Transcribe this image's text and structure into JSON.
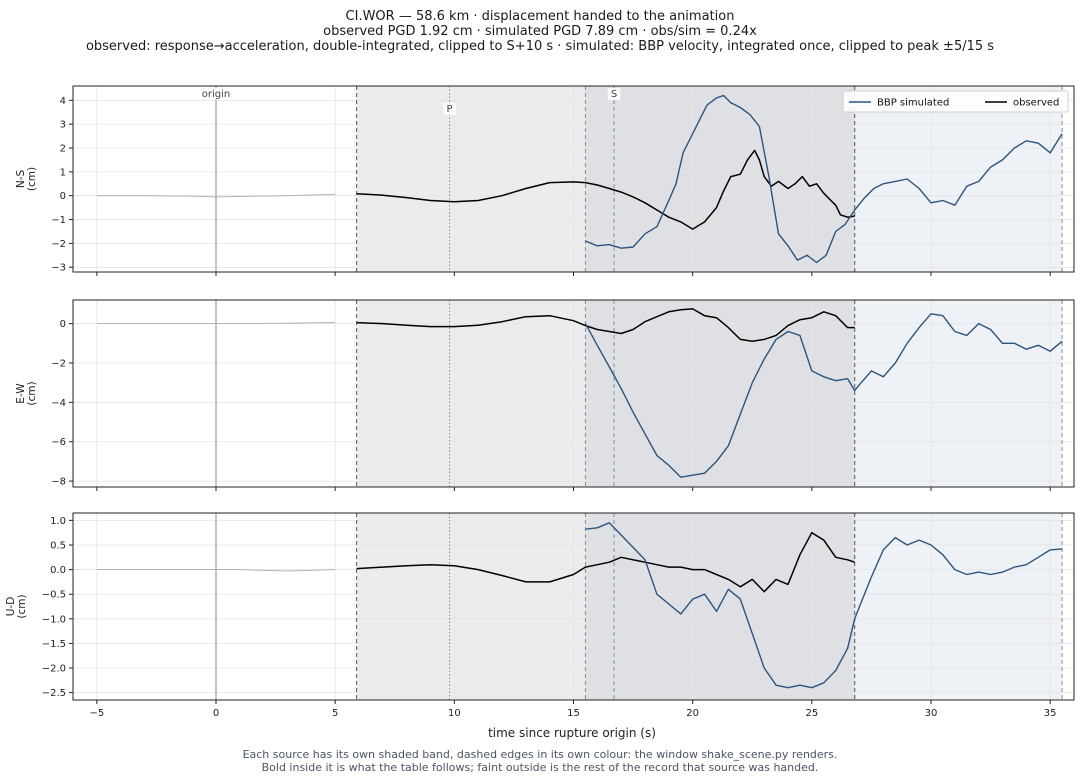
{
  "title": {
    "line1": "CI.WOR  —  58.6 km   ·   displacement handed to the animation",
    "line2": "observed PGD 1.92 cm   ·   simulated PGD 7.89 cm   ·   obs/sim = 0.24x",
    "line3": "observed: response→acceleration, double-integrated, clipped to S+10 s   ·   simulated: BBP velocity, integrated once, clipped to peak ±5/15 s"
  },
  "footnote": {
    "line1": "Each source has its own shaded band, dashed edges in its own colour: the window shake_scene.py renders.",
    "line2": "Bold inside it is what the table follows;   faint outside is the rest of the record that source was handed."
  },
  "colors": {
    "observed": "#000000",
    "simulated": "#2b557f",
    "faint": "#aaaaaa",
    "obs_band": "#ececec",
    "sim_band": "#eef1f5",
    "overlap_band": "#dfe0e4",
    "obs_edge": "#555555",
    "sim_edge": "#7d8fab",
    "origin_line": "#aaaaaa",
    "grid": "#e4e4e4"
  },
  "chart_data": {
    "type": "line",
    "xlabel": "time since rupture origin (s)",
    "xlim": [
      -6,
      36
    ],
    "xticks": [
      -5,
      0,
      5,
      10,
      15,
      20,
      25,
      30,
      35
    ],
    "grid": true,
    "legend": {
      "position": "top-right",
      "entries": [
        "BBP simulated",
        "observed"
      ]
    },
    "markers": [
      {
        "label": "origin",
        "t": 0
      },
      {
        "label": "P",
        "t": 9.8
      },
      {
        "label": "S",
        "t": 16.7
      }
    ],
    "windows": {
      "observed": [
        5.9,
        26.8
      ],
      "simulated": [
        15.5,
        35.5
      ]
    },
    "panels": [
      {
        "ylabel": "N-S\n(cm)",
        "ylim": [
          -3.2,
          4.6
        ],
        "yticks": [
          -3,
          -2,
          -1,
          0,
          1,
          2,
          3,
          4
        ],
        "series": [
          {
            "name": "observed",
            "x": [
              -5,
              -3,
              -1,
              0,
              1,
              3,
              5,
              5.9,
              7,
              8,
              9,
              10,
              11,
              12,
              13,
              14,
              15,
              15.5,
              16,
              16.5,
              17,
              17.5,
              18,
              18.5,
              19,
              19.5,
              20,
              20.5,
              21,
              21.3,
              21.6,
              22,
              22.3,
              22.6,
              22.8,
              23,
              23.3,
              23.6,
              24,
              24.3,
              24.6,
              24.9,
              25.2,
              25.5,
              25.8,
              26,
              26.2,
              26.5,
              26.8
            ],
            "y": [
              0,
              0,
              -0.02,
              -0.05,
              -0.03,
              0,
              0.06,
              0.08,
              0.02,
              -0.08,
              -0.2,
              -0.25,
              -0.2,
              0,
              0.3,
              0.55,
              0.58,
              0.55,
              0.45,
              0.3,
              0.15,
              -0.05,
              -0.3,
              -0.6,
              -0.9,
              -1.1,
              -1.4,
              -1.1,
              -0.5,
              0.2,
              0.8,
              0.9,
              1.5,
              1.9,
              1.5,
              0.8,
              0.4,
              0.6,
              0.3,
              0.5,
              0.8,
              0.4,
              0.5,
              0.1,
              -0.2,
              -0.4,
              -0.8,
              -0.9,
              -0.85
            ]
          },
          {
            "name": "BBP simulated",
            "x": [
              15.5,
              16,
              16.5,
              17,
              17.5,
              18,
              18.5,
              19,
              19.3,
              19.6,
              20,
              20.3,
              20.6,
              21,
              21.3,
              21.6,
              22,
              22.4,
              22.8,
              23.2,
              23.6,
              24,
              24.4,
              24.8,
              25.2,
              25.6,
              26,
              26.4,
              26.8,
              27.2,
              27.6,
              28,
              28.5,
              29,
              29.5,
              30,
              30.5,
              31,
              31.5,
              32,
              32.5,
              33,
              33.5,
              34,
              34.5,
              35,
              35.5
            ],
            "y": [
              -1.9,
              -2.1,
              -2.05,
              -2.2,
              -2.15,
              -1.6,
              -1.3,
              -0.2,
              0.5,
              1.8,
              2.6,
              3.2,
              3.8,
              4.1,
              4.2,
              3.9,
              3.7,
              3.4,
              2.9,
              0.8,
              -1.6,
              -2.1,
              -2.7,
              -2.5,
              -2.8,
              -2.5,
              -1.5,
              -1.2,
              -0.6,
              -0.1,
              0.3,
              0.5,
              0.6,
              0.7,
              0.3,
              -0.3,
              -0.2,
              -0.4,
              0.4,
              0.6,
              1.2,
              1.5,
              2,
              2.3,
              2.2,
              1.8,
              2.6
            ]
          }
        ]
      },
      {
        "ylabel": "E-W\n(cm)",
        "ylim": [
          -8.3,
          1.2
        ],
        "yticks": [
          -8,
          -6,
          -4,
          -2,
          0
        ],
        "series": [
          {
            "name": "observed",
            "x": [
              -5,
              -3,
              -1,
              0,
              1,
              3,
              5,
              5.9,
              7,
              8,
              9,
              10,
              11,
              12,
              13,
              14,
              15,
              15.5,
              16,
              16.5,
              17,
              17.5,
              18,
              18.5,
              19,
              19.5,
              20,
              20.5,
              21,
              21.5,
              22,
              22.5,
              23,
              23.5,
              24,
              24.5,
              25,
              25.5,
              26,
              26.5,
              26.8
            ],
            "y": [
              0,
              0,
              0,
              0,
              0,
              0.02,
              0.05,
              0.05,
              0,
              -0.08,
              -0.15,
              -0.15,
              -0.08,
              0.1,
              0.35,
              0.4,
              0.15,
              -0.1,
              -0.3,
              -0.4,
              -0.5,
              -0.3,
              0.1,
              0.35,
              0.6,
              0.7,
              0.75,
              0.4,
              0.3,
              -0.2,
              -0.8,
              -0.9,
              -0.8,
              -0.6,
              -0.1,
              0.2,
              0.3,
              0.6,
              0.4,
              -0.2,
              -0.2
            ]
          },
          {
            "name": "BBP simulated",
            "x": [
              15.5,
              16,
              16.5,
              17,
              17.5,
              18,
              18.5,
              19,
              19.5,
              20,
              20.5,
              21,
              21.5,
              22,
              22.5,
              23,
              23.5,
              24,
              24.5,
              25,
              25.5,
              26,
              26.5,
              26.8,
              27,
              27.5,
              28,
              28.5,
              29,
              29.5,
              30,
              30.5,
              31,
              31.5,
              32,
              32.5,
              33,
              33.5,
              34,
              34.5,
              35,
              35.5
            ],
            "y": [
              0,
              -1.1,
              -2.2,
              -3.3,
              -4.5,
              -5.6,
              -6.7,
              -7.2,
              -7.8,
              -7.7,
              -7.6,
              -7.0,
              -6.2,
              -4.6,
              -3.0,
              -1.8,
              -0.8,
              -0.4,
              -0.6,
              -2.4,
              -2.7,
              -2.9,
              -2.8,
              -3.4,
              -3.1,
              -2.4,
              -2.7,
              -2.0,
              -1.0,
              -0.2,
              0.5,
              0.4,
              -0.4,
              -0.6,
              0.0,
              -0.3,
              -1.0,
              -1.0,
              -1.3,
              -1.1,
              -1.4,
              -0.9
            ]
          }
        ]
      },
      {
        "ylabel": "U-D\n(cm)",
        "ylim": [
          -2.65,
          1.15
        ],
        "yticks": [
          -2.5,
          -2.0,
          -1.5,
          -1.0,
          -0.5,
          0.0,
          0.5,
          1.0
        ],
        "series": [
          {
            "name": "observed",
            "x": [
              -5,
              -3,
              -1,
              0,
              1,
              3,
              5,
              5.9,
              7,
              8,
              9,
              10,
              11,
              12,
              13,
              14,
              15,
              15.5,
              16,
              16.5,
              17,
              17.5,
              18,
              18.5,
              19,
              19.5,
              20,
              20.5,
              21,
              21.5,
              22,
              22.5,
              23,
              23.5,
              24,
              24.5,
              25,
              25.5,
              26,
              26.5,
              26.8
            ],
            "y": [
              0,
              0,
              0,
              0,
              0,
              -0.03,
              0,
              0.02,
              0.05,
              0.08,
              0.1,
              0.08,
              0,
              -0.12,
              -0.25,
              -0.25,
              -0.1,
              0.05,
              0.1,
              0.15,
              0.25,
              0.2,
              0.15,
              0.1,
              0.05,
              0.05,
              0.0,
              0.0,
              -0.1,
              -0.2,
              -0.35,
              -0.2,
              -0.45,
              -0.2,
              -0.3,
              0.3,
              0.75,
              0.6,
              0.25,
              0.2,
              0.15
            ]
          },
          {
            "name": "BBP simulated",
            "x": [
              15.5,
              16,
              16.5,
              17,
              17.5,
              18,
              18.5,
              19,
              19.5,
              20,
              20.5,
              21,
              21.5,
              22,
              22.5,
              23,
              23.5,
              24,
              24.5,
              25,
              25.5,
              26,
              26.5,
              26.8,
              27,
              27.5,
              28,
              28.5,
              29,
              29.5,
              30,
              30.5,
              31,
              31.5,
              32,
              32.5,
              33,
              33.5,
              34,
              34.5,
              35,
              35.5
            ],
            "y": [
              0.82,
              0.85,
              0.95,
              0.7,
              0.45,
              0.2,
              -0.5,
              -0.7,
              -0.9,
              -0.6,
              -0.5,
              -0.85,
              -0.4,
              -0.6,
              -1.3,
              -2.0,
              -2.35,
              -2.4,
              -2.35,
              -2.4,
              -2.3,
              -2.05,
              -1.6,
              -1.0,
              -0.75,
              -0.15,
              0.4,
              0.65,
              0.5,
              0.6,
              0.5,
              0.3,
              0.0,
              -0.1,
              -0.05,
              -0.1,
              -0.05,
              0.05,
              0.1,
              0.25,
              0.4,
              0.42
            ]
          }
        ]
      }
    ]
  }
}
